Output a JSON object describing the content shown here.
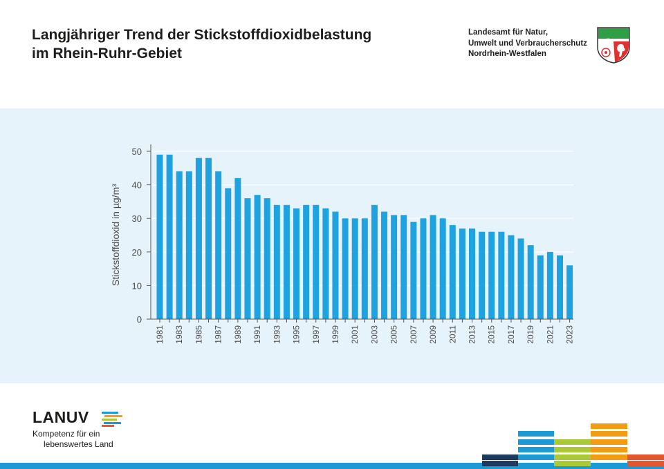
{
  "header": {
    "title_line1": "Langjähriger Trend der Stickstoffdioxidbelastung",
    "title_line2": "im Rhein-Ruhr-Gebiet",
    "agency_line1": "Landesamt für Natur,",
    "agency_line2": "Umwelt und Verbraucherschutz",
    "agency_line3": "Nordrhein-Westfalen"
  },
  "footer": {
    "logo_text": "LANUV",
    "tagline_line1": "Kompetenz für ein",
    "tagline_line2": "lebenswertes Land"
  },
  "colors": {
    "bar": "#1ea2e0",
    "panel_background": "#e6f3fb",
    "accent_blue": "#1b9ad6",
    "accent_green": "#a9c936",
    "accent_orange": "#f39c12",
    "accent_red": "#e4572e",
    "accent_navy": "#1e3a5f"
  },
  "chart_data": {
    "type": "bar",
    "title": "",
    "xlabel": "",
    "ylabel": "Stickstoffdioxid in µg/m³",
    "ylim": [
      0,
      50
    ],
    "yticks": [
      0,
      10,
      20,
      30,
      40,
      50
    ],
    "grid": "horizontal",
    "categories": [
      "1981",
      "1982",
      "1983",
      "1984",
      "1985",
      "1986",
      "1987",
      "1988",
      "1989",
      "1990",
      "1991",
      "1992",
      "1993",
      "1994",
      "1995",
      "1996",
      "1997",
      "1998",
      "1999",
      "2000",
      "2001",
      "2002",
      "2003",
      "2004",
      "2005",
      "2006",
      "2007",
      "2008",
      "2009",
      "2010",
      "2011",
      "2012",
      "2013",
      "2014",
      "2015",
      "2016",
      "2017",
      "2018",
      "2019",
      "2020",
      "2021",
      "2022",
      "2023"
    ],
    "xtick_labels": [
      "1981",
      "1983",
      "1985",
      "1987",
      "1989",
      "1991",
      "1993",
      "1995",
      "1997",
      "1999",
      "2001",
      "2003",
      "2005",
      "2007",
      "2009",
      "2011",
      "2013",
      "2015",
      "2017",
      "2019",
      "2021",
      "2023"
    ],
    "values": [
      49,
      49,
      44,
      44,
      48,
      48,
      44,
      39,
      42,
      36,
      37,
      36,
      34,
      34,
      33,
      34,
      34,
      33,
      32,
      30,
      30,
      30,
      34,
      32,
      31,
      31,
      29,
      30,
      31,
      30,
      28,
      27,
      27,
      26,
      26,
      26,
      25,
      24,
      22,
      19,
      20,
      19,
      16
    ]
  }
}
